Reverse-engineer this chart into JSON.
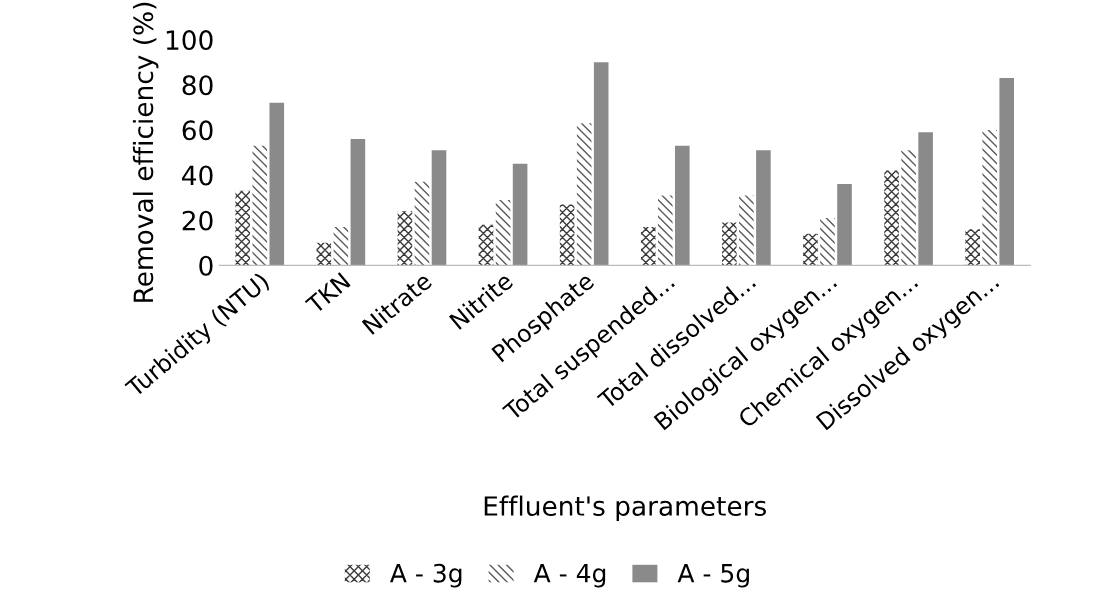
{
  "chart_data": {
    "type": "bar",
    "xlabel": "Effluent's parameters",
    "ylabel": "Removal efficiency (%)",
    "categories": [
      "Turbidity (NTU)",
      "TKN",
      "Nitrate",
      "Nitrite",
      "Phosphate",
      "Total suspended...",
      "Total dissolved...",
      "Biological oxygen...",
      "Chemical oxygen...",
      "Dissolved oxygen..."
    ],
    "series": [
      {
        "name": "A - 3g",
        "color": "#3a3a3a",
        "values": [
          33,
          10,
          24,
          18,
          27,
          17,
          19,
          14,
          42,
          16
        ]
      },
      {
        "name": "A - 4g",
        "color": "#5a5a5a",
        "values": [
          53,
          17,
          37,
          29,
          63,
          31,
          31,
          21,
          51,
          60
        ]
      },
      {
        "name": "A - 5g",
        "color": "#8a8a8a",
        "values": [
          72,
          56,
          51,
          45,
          90,
          53,
          51,
          36,
          59,
          83
        ]
      }
    ],
    "ylim": [
      0,
      100
    ],
    "yticks": [
      0,
      20,
      40,
      60,
      80,
      100
    ],
    "grid": false,
    "legend": "bottom"
  }
}
